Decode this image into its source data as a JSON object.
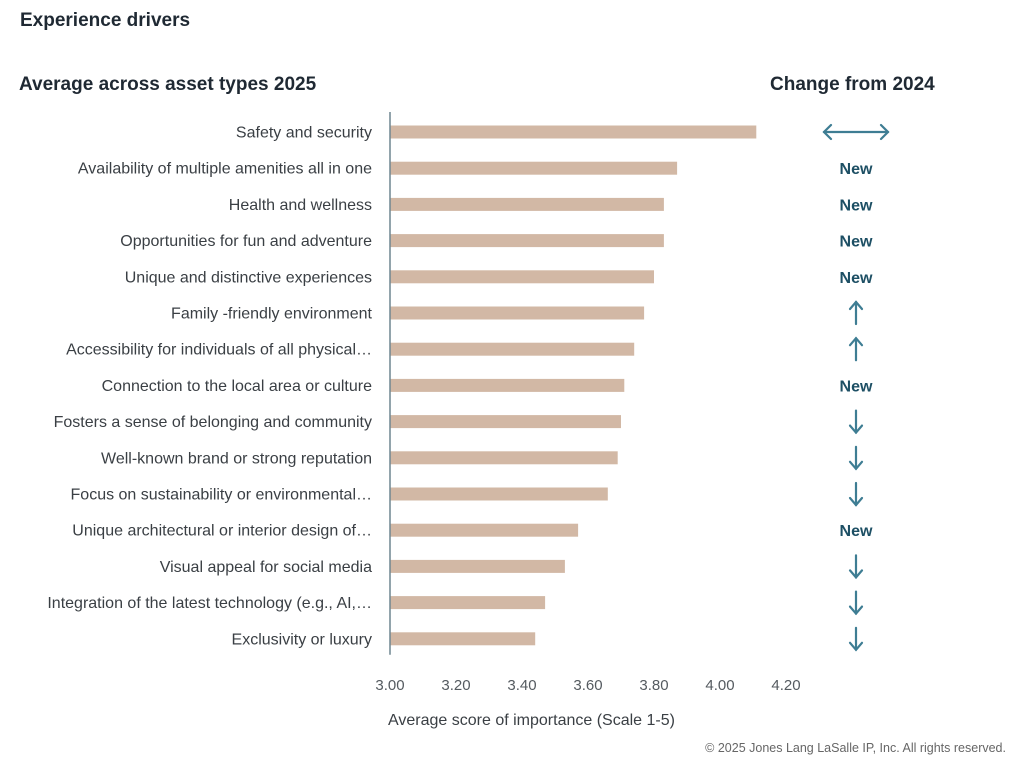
{
  "header": {
    "title": "Experience drivers",
    "subtitle": "Average across asset types 2025",
    "change_title": "Change from 2024"
  },
  "footer": {
    "copyright": "© 2025 Jones Lang LaSalle IP, Inc. All rights reserved."
  },
  "colors": {
    "bar": "#d2b8a5",
    "axis": "#6f8590",
    "change_icon": "#3e7d93",
    "new_text": "#1d4f64"
  },
  "chart_data": {
    "type": "bar",
    "orientation": "horizontal",
    "title": "Average across asset types 2025",
    "xlabel": "Average score of importance (Scale 1-5)",
    "ylabel": "",
    "xlim": [
      3.0,
      4.2
    ],
    "xticks": [
      "3.00",
      "3.20",
      "3.40",
      "3.60",
      "3.80",
      "4.00",
      "4.20"
    ],
    "grid": false,
    "categories": [
      "Safety and security",
      "Availability of multiple amenities all in one",
      "Health and wellness",
      "Opportunities for fun and adventure",
      "Unique and distinctive experiences",
      "Family -friendly environment",
      "Accessibility for individuals of all physical…",
      "Connection to the local area or culture",
      "Fosters a sense of belonging and community",
      "Well-known brand or strong reputation",
      "Focus on sustainability or environmental…",
      "Unique architectural or interior design of…",
      "Visual appeal for social media",
      "Integration of the latest technology (e.g., AI,…",
      "Exclusivity or luxury"
    ],
    "values": [
      4.11,
      3.87,
      3.83,
      3.83,
      3.8,
      3.77,
      3.74,
      3.71,
      3.7,
      3.69,
      3.66,
      3.57,
      3.53,
      3.47,
      3.44
    ],
    "change_from_2024_title": "Change from 2024",
    "change_from_2024": [
      "same",
      "new",
      "new",
      "new",
      "new",
      "up",
      "up",
      "new",
      "down",
      "down",
      "down",
      "new",
      "down",
      "down",
      "down"
    ],
    "change_labels": {
      "new": "New",
      "up": "arrow-up",
      "down": "arrow-down",
      "same": "arrow-left-right"
    }
  }
}
